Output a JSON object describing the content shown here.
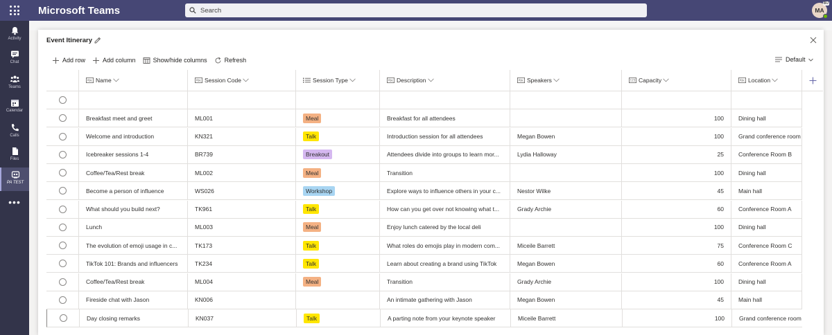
{
  "app": {
    "title": "Microsoft Teams",
    "search_placeholder": "Search",
    "avatar_initials": "MA",
    "avatar_badge": "BU"
  },
  "rail": [
    {
      "label": "Activity",
      "icon": "bell-icon"
    },
    {
      "label": "Chat",
      "icon": "chat-icon"
    },
    {
      "label": "Teams",
      "icon": "teams-icon"
    },
    {
      "label": "Calendar",
      "icon": "calendar-icon"
    },
    {
      "label": "Calls",
      "icon": "phone-icon"
    },
    {
      "label": "Files",
      "icon": "file-icon"
    },
    {
      "label": "PA TEST",
      "icon": "app-icon",
      "active": true
    }
  ],
  "dialog": {
    "title": "Event Itinerary"
  },
  "toolbar": {
    "add_row": "Add row",
    "add_column": "Add column",
    "show_hide": "Show/hide columns",
    "refresh": "Refresh",
    "view": "Default"
  },
  "columns": [
    {
      "label": "Name",
      "icon": "text-type-icon"
    },
    {
      "label": "Session Code",
      "icon": "text-type-icon"
    },
    {
      "label": "Session Type",
      "icon": "choice-type-icon"
    },
    {
      "label": "Description",
      "icon": "text-type-icon"
    },
    {
      "label": "Speakers",
      "icon": "text-type-icon"
    },
    {
      "label": "Capacity",
      "icon": "number-type-icon"
    },
    {
      "label": "Location",
      "icon": "text-type-icon"
    }
  ],
  "session_colors": {
    "Meal": "#f4b183",
    "Talk": "#ffe600",
    "Breakout": "#d5b8f0",
    "Workshop": "#a8d5f2"
  },
  "rows": [
    {
      "name": "",
      "code": "",
      "type": "",
      "description": "",
      "speakers": "",
      "capacity": "",
      "location": ""
    },
    {
      "name": "Breakfast meet and greet",
      "code": "ML001",
      "type": "Meal",
      "description": "Breakfast for all attendees",
      "speakers": "",
      "capacity": "100",
      "location": "Dining hall"
    },
    {
      "name": "Welcome and introduction",
      "code": "KN321",
      "type": "Talk",
      "description": "Introduction session for all attendees",
      "speakers": "Megan Bowen",
      "capacity": "100",
      "location": "Grand conference room"
    },
    {
      "name": "Icebreaker sessions 1-4",
      "code": "BR739",
      "type": "Breakout",
      "description": "Attendees divide into groups to learn mor...",
      "speakers": "Lydia Halloway",
      "capacity": "25",
      "location": "Conference Room B"
    },
    {
      "name": "Coffee/Tea/Rest break",
      "code": "ML002",
      "type": "Meal",
      "description": "Transition",
      "speakers": "",
      "capacity": "100",
      "location": "Dining hall"
    },
    {
      "name": "Become a person of influence",
      "code": "WS026",
      "type": "Workshop",
      "description": "Explore ways to influence others in your c...",
      "speakers": "Nestor Wilke",
      "capacity": "45",
      "location": "Main hall"
    },
    {
      "name": "What should you build next?",
      "code": "TK961",
      "type": "Talk",
      "description": "How can you get over not knowing what t...",
      "speakers": "Grady Archie",
      "capacity": "60",
      "location": "Conference Room A"
    },
    {
      "name": "Lunch",
      "code": "ML003",
      "type": "Meal",
      "description": "Enjoy lunch catered by the local deli",
      "speakers": "",
      "capacity": "100",
      "location": "Dining hall"
    },
    {
      "name": "The evolution of emoji usage in c...",
      "code": "TK173",
      "type": "Talk",
      "description": "What roles do emojis play in modern com...",
      "speakers": "Miceile Barrett",
      "capacity": "75",
      "location": "Conference Room C"
    },
    {
      "name": "TikTok 101: Brands and influencers",
      "code": "TK234",
      "type": "Talk",
      "description": "Learn about creating a brand using TikTok",
      "speakers": "Megan Bowen",
      "capacity": "60",
      "location": "Conference Room A"
    },
    {
      "name": "Coffee/Tea/Rest break",
      "code": "ML004",
      "type": "Meal",
      "description": "Transition",
      "speakers": "Grady Archie",
      "capacity": "100",
      "location": "Dining hall"
    },
    {
      "name": "Fireside chat with Jason",
      "code": "KN006",
      "type": "",
      "description": "An intimate gathering with Jason",
      "speakers": "Megan Bowen",
      "capacity": "45",
      "location": "Main hall"
    },
    {
      "name": "Day closing remarks",
      "code": "KN037",
      "type": "Talk",
      "description": "A parting note from your keynote speaker",
      "speakers": "Miceile Barrett",
      "capacity": "100",
      "location": "Grand conference room"
    }
  ]
}
